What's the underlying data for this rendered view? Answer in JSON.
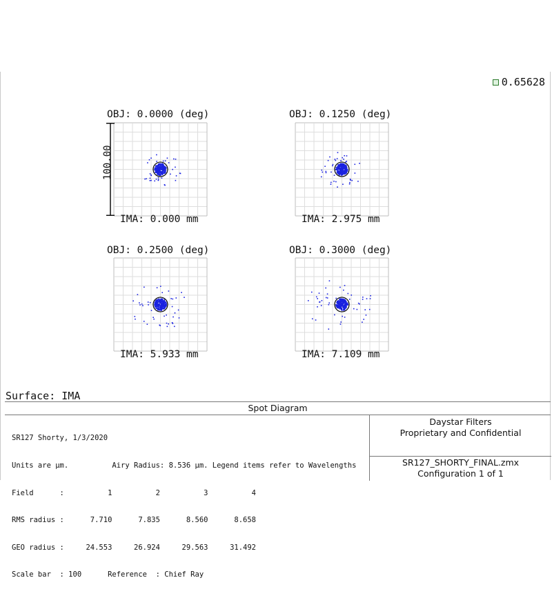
{
  "legend": {
    "value": "0.65628",
    "color": "#2a7a2a"
  },
  "spot_color": "#1a22e0",
  "scale_bar": {
    "label": "100.00"
  },
  "panels": [
    {
      "obj": "OBJ: 0.0000 (deg)",
      "ima": "IMA: 0.000 mm"
    },
    {
      "obj": "OBJ: 0.1250 (deg)",
      "ima": "IMA: 2.975 mm"
    },
    {
      "obj": "OBJ: 0.2500 (deg)",
      "ima": "IMA: 5.933 mm"
    },
    {
      "obj": "OBJ: 0.3000 (deg)",
      "ima": "IMA: 7.109 mm"
    }
  ],
  "surface": "Surface: IMA",
  "info": {
    "title": "Spot Diagram",
    "lines": [
      "SR127 Shorty, 1/3/2020",
      "Units are µm.          Airy Radius: 8.536 µm. Legend items refer to Wavelengths",
      "Field      :          1          2          3          4",
      "RMS radius :      7.710      7.835      8.560      8.658",
      "GEO radius :     24.553     26.924     29.563     31.492",
      "Scale bar  : 100      Reference  : Chief Ray"
    ],
    "company": "Daystar Filters",
    "confidential": "Proprietary and Confidential",
    "filename": "SR127_SHORTY_FINAL.zmx",
    "configuration": "Configuration 1 of 1"
  }
}
